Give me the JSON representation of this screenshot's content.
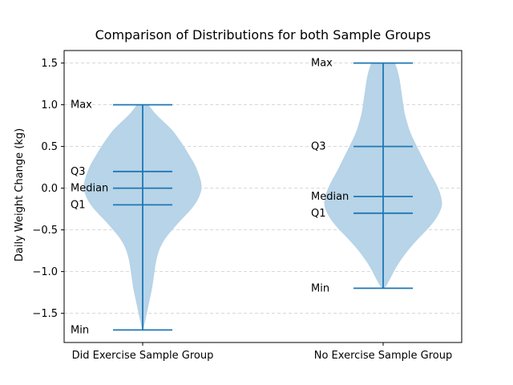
{
  "chart_data": {
    "type": "violin",
    "title": "Comparison of Distributions for both Sample Groups",
    "xlabel": "",
    "ylabel": "Daily Weight Change (kg)",
    "ylim": [
      -1.85,
      1.65
    ],
    "yticks": [
      1.5,
      1.0,
      0.5,
      0.0,
      -0.5,
      -1.0,
      -1.5
    ],
    "ytick_labels": [
      "1.5",
      "1.0",
      "0.5",
      "0.0",
      "−0.5",
      "−1.0",
      "−1.5"
    ],
    "grid": "y dashed",
    "colors": {
      "violin_fill": "#b7d4e8",
      "lines": "#1f77b4",
      "grid": "#cccccc"
    },
    "groups": [
      {
        "name": "Did Exercise Sample Group",
        "max": 1.0,
        "q3": 0.2,
        "median": 0.0,
        "q1": -0.2,
        "min": -1.7,
        "stat_labels": {
          "max": "Max",
          "q3": "Q3",
          "median": "Median",
          "q1": "Q1",
          "min": "Min"
        },
        "density_profile": [
          [
            1.0,
            0.1
          ],
          [
            0.9,
            0.2
          ],
          [
            0.8,
            0.35
          ],
          [
            0.7,
            0.5
          ],
          [
            0.6,
            0.6
          ],
          [
            0.5,
            0.7
          ],
          [
            0.4,
            0.78
          ],
          [
            0.3,
            0.87
          ],
          [
            0.2,
            0.93
          ],
          [
            0.1,
            0.98
          ],
          [
            0.0,
            1.0
          ],
          [
            -0.1,
            0.96
          ],
          [
            -0.2,
            0.88
          ],
          [
            -0.3,
            0.76
          ],
          [
            -0.4,
            0.62
          ],
          [
            -0.5,
            0.5
          ],
          [
            -0.6,
            0.38
          ],
          [
            -0.7,
            0.3
          ],
          [
            -0.8,
            0.25
          ],
          [
            -0.9,
            0.22
          ],
          [
            -1.0,
            0.2
          ],
          [
            -1.1,
            0.18
          ],
          [
            -1.2,
            0.16
          ],
          [
            -1.3,
            0.13
          ],
          [
            -1.4,
            0.1
          ],
          [
            -1.5,
            0.07
          ],
          [
            -1.6,
            0.04
          ],
          [
            -1.7,
            0.01
          ]
        ]
      },
      {
        "name": "No Exercise Sample Group",
        "max": 1.5,
        "q3": 0.5,
        "median": -0.1,
        "q1": -0.3,
        "min": -1.2,
        "stat_labels": {
          "max": "Max",
          "q3": "Q3",
          "median": "Median",
          "q1": "Q1",
          "min": "Min"
        },
        "density_profile": [
          [
            1.5,
            0.2
          ],
          [
            1.4,
            0.25
          ],
          [
            1.3,
            0.28
          ],
          [
            1.2,
            0.3
          ],
          [
            1.1,
            0.32
          ],
          [
            1.0,
            0.34
          ],
          [
            0.9,
            0.36
          ],
          [
            0.8,
            0.4
          ],
          [
            0.7,
            0.44
          ],
          [
            0.6,
            0.5
          ],
          [
            0.5,
            0.57
          ],
          [
            0.4,
            0.64
          ],
          [
            0.3,
            0.71
          ],
          [
            0.2,
            0.78
          ],
          [
            0.1,
            0.86
          ],
          [
            0.0,
            0.93
          ],
          [
            -0.1,
            0.98
          ],
          [
            -0.2,
            1.0
          ],
          [
            -0.3,
            0.95
          ],
          [
            -0.4,
            0.86
          ],
          [
            -0.5,
            0.74
          ],
          [
            -0.6,
            0.6
          ],
          [
            -0.7,
            0.47
          ],
          [
            -0.8,
            0.36
          ],
          [
            -0.9,
            0.26
          ],
          [
            -1.0,
            0.18
          ],
          [
            -1.1,
            0.11
          ],
          [
            -1.2,
            0.03
          ]
        ]
      }
    ]
  }
}
